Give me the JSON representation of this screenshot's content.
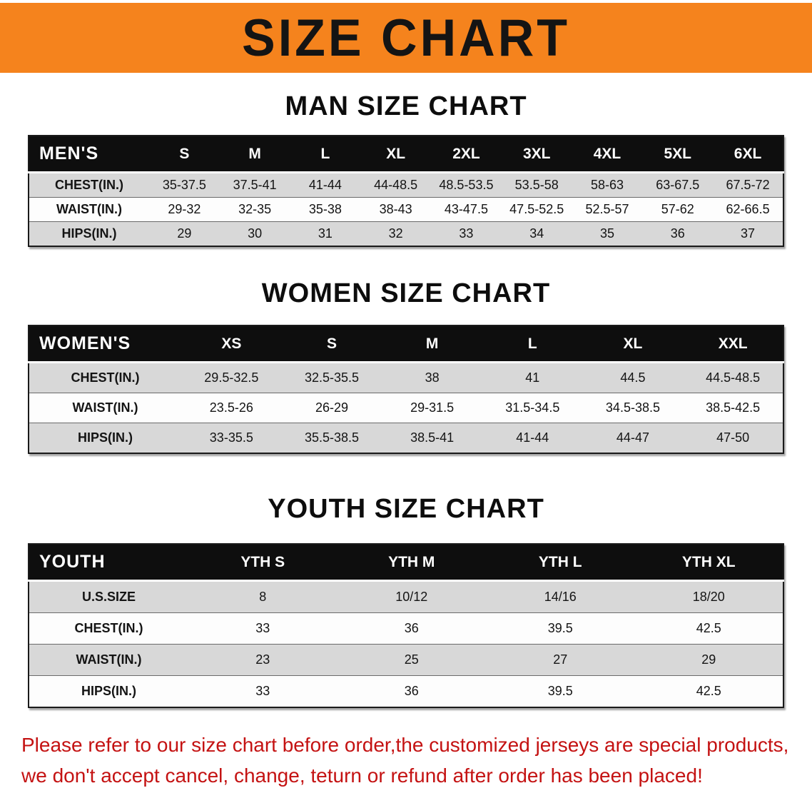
{
  "banner": {
    "title": "SIZE CHART"
  },
  "colors": {
    "banner_orange": "#f5831d",
    "footer_red": "#c41212",
    "header_black": "#0e0e0e",
    "row_gray": "#d8d8d8"
  },
  "men_section": {
    "heading": "MAN SIZE CHART",
    "table": {
      "header": [
        "MEN'S",
        "S",
        "M",
        "L",
        "XL",
        "2XL",
        "3XL",
        "4XL",
        "5XL",
        "6XL"
      ],
      "rows": [
        {
          "label": "CHEST(IN.)",
          "values": [
            "35-37.5",
            "37.5-41",
            "41-44",
            "44-48.5",
            "48.5-53.5",
            "53.5-58",
            "58-63",
            "63-67.5",
            "67.5-72"
          ]
        },
        {
          "label": "WAIST(IN.)",
          "values": [
            "29-32",
            "32-35",
            "35-38",
            "38-43",
            "43-47.5",
            "47.5-52.5",
            "52.5-57",
            "57-62",
            "62-66.5"
          ]
        },
        {
          "label": "HIPS(IN.)",
          "values": [
            "29",
            "30",
            "31",
            "32",
            "33",
            "34",
            "35",
            "36",
            "37"
          ]
        }
      ]
    }
  },
  "women_section": {
    "heading": "WOMEN SIZE CHART",
    "table": {
      "header": [
        "WOMEN'S",
        "XS",
        "S",
        "M",
        "L",
        "XL",
        "XXL"
      ],
      "rows": [
        {
          "label": "CHEST(IN.)",
          "values": [
            "29.5-32.5",
            "32.5-35.5",
            "38",
            "41",
            "44.5",
            "44.5-48.5"
          ]
        },
        {
          "label": "WAIST(IN.)",
          "values": [
            "23.5-26",
            "26-29",
            "29-31.5",
            "31.5-34.5",
            "34.5-38.5",
            "38.5-42.5"
          ]
        },
        {
          "label": "HIPS(IN.)",
          "values": [
            "33-35.5",
            "35.5-38.5",
            "38.5-41",
            "41-44",
            "44-47",
            "47-50"
          ]
        }
      ]
    }
  },
  "youth_section": {
    "heading": "YOUTH SIZE CHART",
    "table": {
      "header": [
        "YOUTH",
        "YTH S",
        "YTH M",
        "YTH L",
        "YTH XL"
      ],
      "rows": [
        {
          "label": "U.S.SIZE",
          "values": [
            "8",
            "10/12",
            "14/16",
            "18/20"
          ]
        },
        {
          "label": "CHEST(IN.)",
          "values": [
            "33",
            "36",
            "39.5",
            "42.5"
          ]
        },
        {
          "label": "WAIST(IN.)",
          "values": [
            "23",
            "25",
            "27",
            "29"
          ]
        },
        {
          "label": "HIPS(IN.)",
          "values": [
            "33",
            "36",
            "39.5",
            "42.5"
          ]
        }
      ]
    }
  },
  "footer": {
    "line1": "Please refer to our size chart before order,the customized jerseys are special products,",
    "line2": "we don't accept cancel, change, teturn or refund after order has been placed!"
  }
}
